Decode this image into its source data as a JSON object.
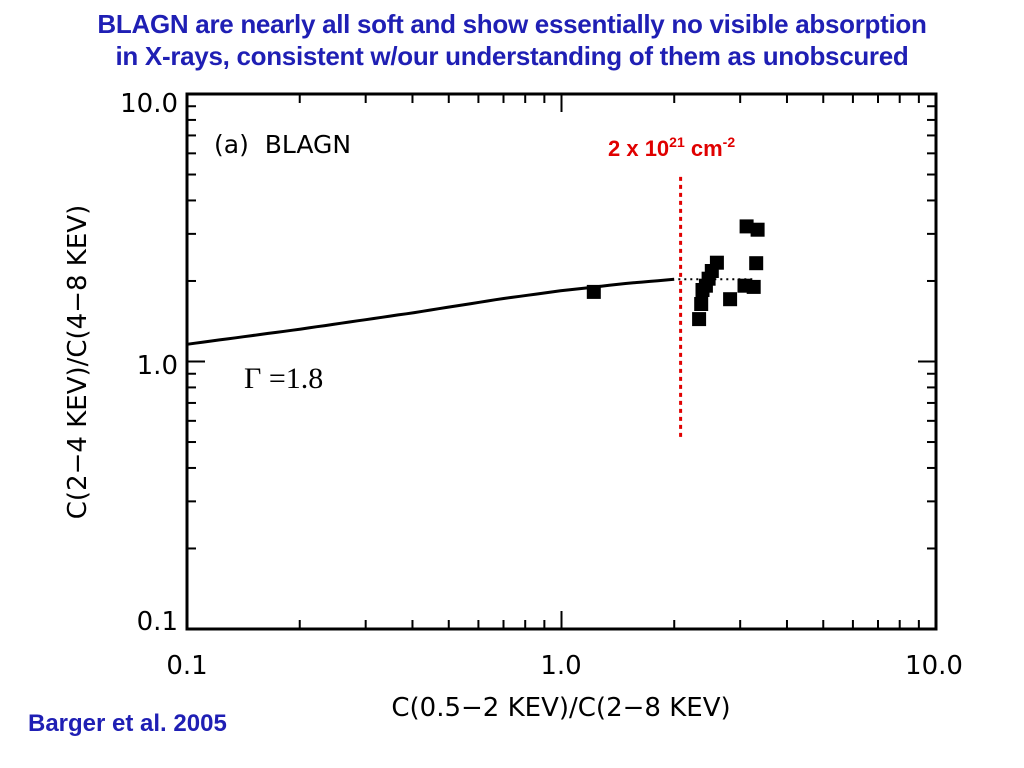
{
  "slide": {
    "title_line1": "BLAGN are nearly all soft and show essentially no visible absorption",
    "title_line2": "in X-rays, consistent w/our understanding of them as unobscured",
    "citation": "Barger et al. 2005",
    "title_color": "#1f1fb4"
  },
  "chart_data": {
    "type": "scatter",
    "panel_label": "(a)  BLAGN",
    "xlabel": "C(0.5−2 KEV)/C(2−8 KEV)",
    "ylabel": "C(2−4 KEV)/C(4−8 KEV)",
    "xscale": "log",
    "yscale": "log",
    "xlim": [
      0.1,
      10.0
    ],
    "ylim": [
      0.1,
      10.0
    ],
    "x_ticks": [
      "0.1",
      "1.0",
      "10.0"
    ],
    "y_ticks": [
      "0.1",
      "1.0",
      "10.0"
    ],
    "x_tick_values": [
      0.1,
      1.0,
      10.0
    ],
    "y_tick_values": [
      0.1,
      1.0,
      10.0
    ],
    "grid": false,
    "points": [
      {
        "x": 1.22,
        "y": 1.82
      },
      {
        "x": 2.33,
        "y": 1.44
      },
      {
        "x": 2.36,
        "y": 1.64
      },
      {
        "x": 2.38,
        "y": 1.85
      },
      {
        "x": 2.43,
        "y": 1.92
      },
      {
        "x": 2.47,
        "y": 2.04
      },
      {
        "x": 2.52,
        "y": 2.18
      },
      {
        "x": 2.6,
        "y": 2.34
      },
      {
        "x": 2.82,
        "y": 1.71
      },
      {
        "x": 3.08,
        "y": 1.92
      },
      {
        "x": 3.12,
        "y": 3.2
      },
      {
        "x": 3.26,
        "y": 1.9
      },
      {
        "x": 3.34,
        "y": 3.11
      },
      {
        "x": 3.31,
        "y": 2.33
      }
    ],
    "curve": {
      "label": "Γ =1.8",
      "x": [
        0.1,
        0.2,
        0.4,
        0.7,
        1.0,
        1.5,
        2.0
      ],
      "y": [
        1.16,
        1.32,
        1.52,
        1.72,
        1.84,
        1.96,
        2.03
      ]
    },
    "curve_extension": {
      "style": "dotted",
      "x": [
        2.05,
        3.3
      ],
      "y": [
        2.03,
        2.03
      ]
    },
    "reference_line": {
      "x": 2.08,
      "y_range": [
        0.52,
        4.9
      ],
      "color": "#e00000",
      "style": "dotted",
      "label_base": "2 x 10",
      "label_exp": "21",
      "label_unit": " cm",
      "label_unit_exp": "-2"
    }
  }
}
